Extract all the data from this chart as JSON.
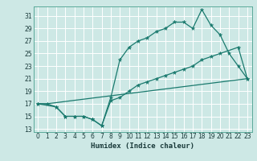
{
  "title": "",
  "xlabel": "Humidex (Indice chaleur)",
  "bg_color": "#cde8e5",
  "grid_color": "#ffffff",
  "line_color": "#1a7a6e",
  "xlim": [
    -0.5,
    23.5
  ],
  "ylim": [
    12.5,
    32.5
  ],
  "yticks": [
    13,
    15,
    17,
    19,
    21,
    23,
    25,
    27,
    29,
    31
  ],
  "xticks": [
    0,
    1,
    2,
    3,
    4,
    5,
    6,
    7,
    8,
    9,
    10,
    11,
    12,
    13,
    14,
    15,
    16,
    17,
    18,
    19,
    20,
    21,
    22,
    23
  ],
  "line1_x": [
    0,
    1,
    2,
    3,
    4,
    5,
    6,
    7,
    8,
    9,
    10,
    11,
    12,
    13,
    14,
    15,
    16,
    17,
    18,
    19,
    20,
    21,
    22,
    23
  ],
  "line1_y": [
    17.0,
    17.0,
    16.5,
    15.0,
    15.0,
    15.0,
    14.5,
    13.5,
    18.0,
    24.0,
    26.0,
    27.0,
    27.5,
    28.5,
    29.0,
    30.0,
    30.0,
    29.0,
    32.0,
    29.5,
    28.0,
    25.0,
    23.0,
    21.0
  ],
  "line2_x": [
    0,
    2,
    3,
    4,
    5,
    6,
    7,
    8,
    9,
    10,
    11,
    12,
    13,
    14,
    15,
    16,
    17,
    18,
    19,
    20,
    22,
    23
  ],
  "line2_y": [
    17.0,
    16.5,
    15.0,
    15.0,
    15.0,
    14.5,
    13.5,
    17.5,
    18.0,
    19.0,
    20.0,
    20.5,
    21.0,
    21.5,
    22.0,
    22.5,
    23.0,
    24.0,
    24.5,
    25.0,
    26.0,
    21.0
  ],
  "line3_x": [
    0,
    1,
    23
  ],
  "line3_y": [
    17.0,
    17.0,
    21.0
  ]
}
